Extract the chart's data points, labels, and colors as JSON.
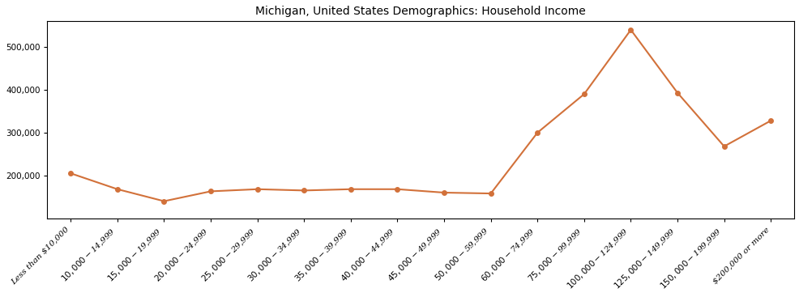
{
  "title": "Michigan, United States Demographics: Household Income",
  "categories": [
    "Less than $10,000",
    "$10,000 - $14,999",
    "$15,000 - $19,999",
    "$20,000 - $24,999",
    "$25,000 - $29,999",
    "$30,000 - $34,999",
    "$35,000 - $39,999",
    "$40,000 - $44,999",
    "$45,000 - $49,999",
    "$50,000 - $59,999",
    "$60,000 - $74,999",
    "$75,000 - $99,999",
    "$100,000 - $124,999",
    "$125,000 - $149,999",
    "$150,000 - $199,999",
    "$200,000 or more"
  ],
  "values": [
    205000,
    168000,
    140000,
    163000,
    168000,
    165000,
    168000,
    168000,
    160000,
    158000,
    300000,
    390000,
    540000,
    393000,
    268000,
    328000
  ],
  "line_color": "#d2713a",
  "marker": "o",
  "marker_size": 4,
  "linewidth": 1.5,
  "ylim": [
    100000,
    560000
  ],
  "yticks": [
    200000,
    300000,
    400000,
    500000
  ],
  "title_fontsize": 10,
  "tick_fontsize": 7.5,
  "background_color": "#ffffff",
  "figsize": [
    9.87,
    3.67
  ],
  "dpi": 100
}
